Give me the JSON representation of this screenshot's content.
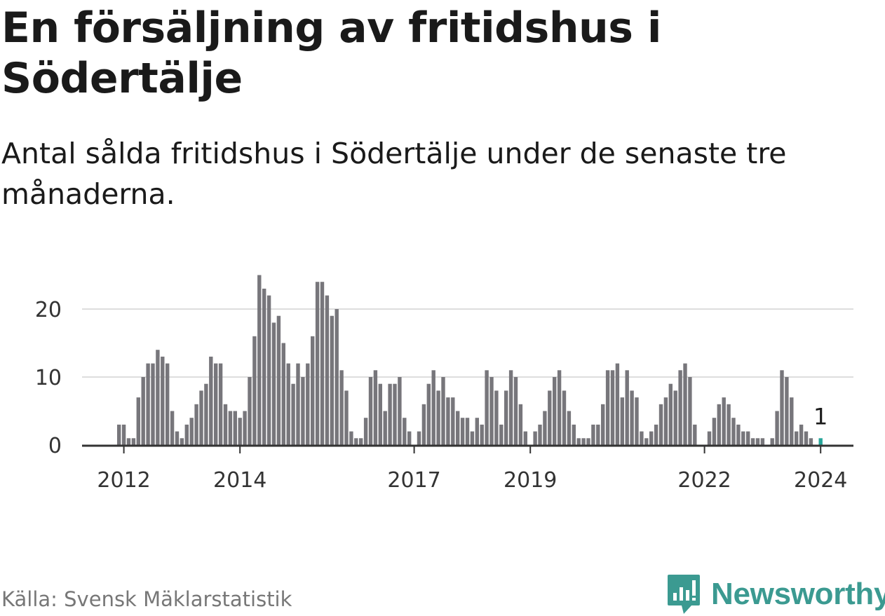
{
  "header": {
    "title": "En försäljning av fritidshus i Södertälje",
    "subtitle": "Antal sålda fritidshus i Södertälje under de senaste tre månaderna."
  },
  "footer": {
    "source": "Källa: Svensk Mäklarstatistik",
    "brand": "Newsworthy"
  },
  "colors": {
    "bar": "#77767b",
    "highlight": "#26a69a",
    "grid": "#dddddd",
    "axis": "#333333",
    "brand": "#3b9a91"
  },
  "chart_data": {
    "type": "bar",
    "title": "En försäljning av fritidshus i Södertälje",
    "subtitle": "Antal sålda fritidshus i Södertälje under de senaste tre månaderna.",
    "xlabel": "",
    "ylabel": "",
    "ylim": [
      0,
      25
    ],
    "yticks": [
      0,
      10,
      20
    ],
    "xtick_labels": [
      "2012",
      "2014",
      "2017",
      "2019",
      "2022",
      "2024"
    ],
    "start_month": "2011-12",
    "end_month": "2024-02",
    "values": [
      3,
      3,
      1,
      1,
      7,
      10,
      12,
      12,
      14,
      13,
      12,
      5,
      2,
      1,
      3,
      4,
      6,
      8,
      9,
      13,
      12,
      12,
      6,
      5,
      5,
      4,
      5,
      10,
      16,
      25,
      23,
      22,
      18,
      19,
      15,
      12,
      9,
      12,
      10,
      12,
      16,
      24,
      24,
      22,
      19,
      20,
      11,
      8,
      2,
      1,
      1,
      4,
      10,
      11,
      9,
      5,
      9,
      9,
      10,
      4,
      2,
      0,
      2,
      6,
      9,
      11,
      8,
      10,
      7,
      7,
      5,
      4,
      4,
      2,
      4,
      3,
      11,
      10,
      8,
      3,
      8,
      11,
      10,
      6,
      2,
      0,
      2,
      3,
      5,
      8,
      10,
      11,
      8,
      5,
      3,
      1,
      1,
      1,
      3,
      3,
      6,
      11,
      11,
      12,
      7,
      11,
      8,
      7,
      2,
      1,
      2,
      3,
      6,
      7,
      9,
      8,
      11,
      12,
      10,
      3,
      0,
      0,
      2,
      4,
      6,
      7,
      6,
      4,
      3,
      2,
      2,
      1,
      1,
      1,
      0,
      1,
      5,
      11,
      10,
      7,
      2,
      3,
      2,
      1,
      0,
      1
    ],
    "highlight": {
      "label": "1",
      "value": 1,
      "month": "2024-02"
    }
  }
}
